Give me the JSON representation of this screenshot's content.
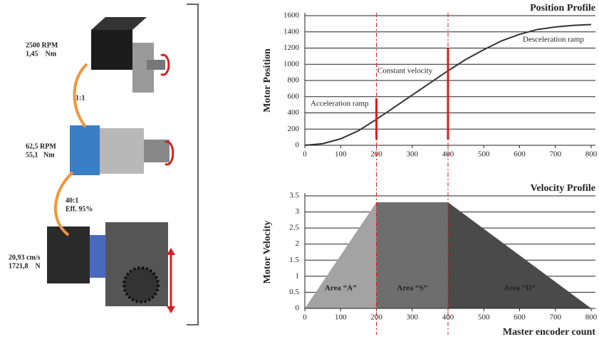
{
  "diagram": {
    "labels": [
      "2500 RPM",
      "1,45    Nm",
      "1:1",
      "62,5 RPM",
      "55,1   Nm",
      "40:1",
      "Eff. 95%",
      "20,93 cm/s",
      "1721,8    N"
    ]
  },
  "chart_data": [
    {
      "type": "line",
      "title": "Position Profile",
      "ylabel": "Motor Position",
      "x": [
        0,
        50,
        100,
        150,
        200,
        250,
        300,
        350,
        400,
        450,
        500,
        550,
        600,
        650,
        700,
        750,
        800
      ],
      "series": [
        {
          "color": "#333333",
          "values": [
            0,
            20,
            80,
            180,
            320,
            470,
            620,
            770,
            920,
            1060,
            1180,
            1290,
            1370,
            1430,
            1460,
            1480,
            1490
          ]
        }
      ],
      "markers": {
        "color": "#d42020",
        "x": [
          200,
          400
        ],
        "values": [
          580,
          1200
        ]
      },
      "vlines": [
        200,
        400
      ],
      "annotations": [
        "Acceleration ramp",
        "Constant velocity",
        "Desceleration ramp"
      ],
      "xlim": [
        0,
        800
      ],
      "xticks": [
        0,
        100,
        200,
        300,
        400,
        500,
        600,
        700,
        800
      ],
      "ylim": [
        0,
        1600
      ],
      "yticks": [
        0,
        200,
        400,
        600,
        800,
        1000,
        1200,
        1400,
        1600
      ],
      "grid": true
    },
    {
      "type": "area",
      "title": "Velocity Profile",
      "xlabel": "Master encoder count",
      "ylabel": "Motor Velocity",
      "series": [
        {
          "name": "Area “A”",
          "color": "#a3a3a3",
          "x": [
            0,
            200
          ],
          "values": [
            0,
            3.3
          ]
        },
        {
          "name": "Area “S”",
          "color": "#6e6e6e",
          "x": [
            200,
            400
          ],
          "values": [
            3.3,
            3.3
          ]
        },
        {
          "name": "Area “D”",
          "color": "#4a4a4a",
          "x": [
            400,
            800
          ],
          "values": [
            3.3,
            0
          ]
        }
      ],
      "xlim": [
        0,
        800
      ],
      "xticks": [
        0,
        100,
        200,
        300,
        400,
        500,
        600,
        700,
        800
      ],
      "ylim": [
        0,
        3.5
      ],
      "yticks": [
        0,
        0.5,
        1,
        1.5,
        2,
        2.5,
        3,
        3.5
      ],
      "grid": true
    }
  ]
}
